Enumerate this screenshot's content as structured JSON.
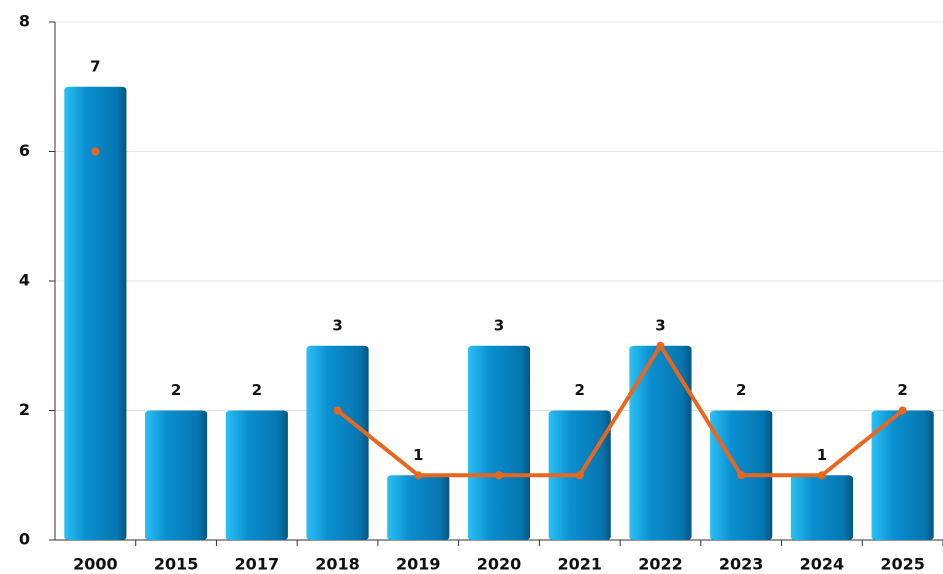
{
  "chart_data": {
    "type": "bar",
    "categories": [
      "2000",
      "2015",
      "2017",
      "2018",
      "2019",
      "2020",
      "2021",
      "2022",
      "2023",
      "2024",
      "2025"
    ],
    "series": [
      {
        "type": "bar",
        "color": "#0a8fd0",
        "values": [
          7,
          2,
          2,
          3,
          1,
          3,
          2,
          3,
          2,
          1,
          2
        ]
      },
      {
        "type": "line",
        "color": "#e8671e",
        "values": [
          6,
          null,
          null,
          2,
          1,
          1,
          1,
          3,
          1,
          1,
          2
        ]
      }
    ],
    "ylim": [
      0,
      8
    ],
    "yticks": [
      0,
      2,
      4,
      6,
      8
    ],
    "grid": true
  }
}
